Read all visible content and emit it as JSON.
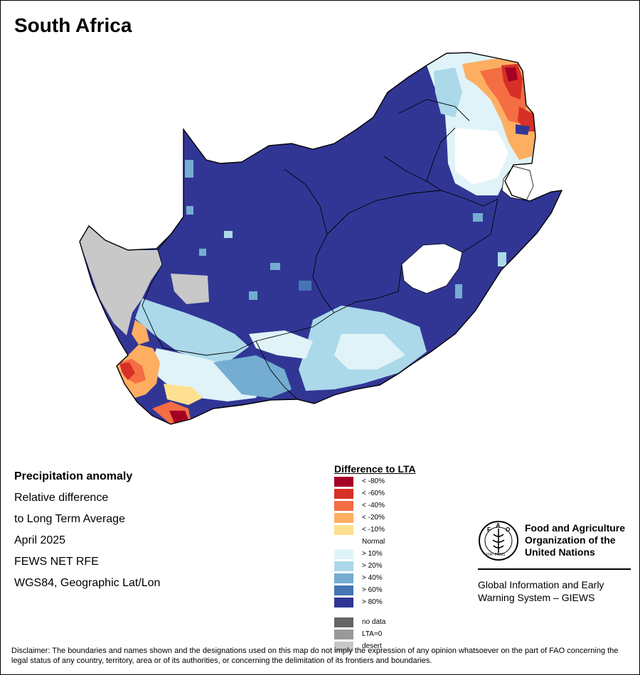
{
  "title": "South Africa",
  "info": {
    "line1": "Precipitation anomaly",
    "line2": "Relative difference",
    "line3": "to Long Term Average",
    "line4": "April 2025",
    "line5": "FEWS NET RFE",
    "line6": "WGS84, Geographic Lat/Lon"
  },
  "legend": {
    "title": "Difference to LTA",
    "items": [
      {
        "label": "< -80%",
        "color": "#a50026"
      },
      {
        "label": "< -60%",
        "color": "#d73027"
      },
      {
        "label": "< -40%",
        "color": "#f46d43"
      },
      {
        "label": "< -20%",
        "color": "#fdae61"
      },
      {
        "label": "< -10%",
        "color": "#fee090"
      },
      {
        "label": "Normal",
        "color": "#ffffff"
      },
      {
        "label": "> 10%",
        "color": "#e0f3f8"
      },
      {
        "label": "> 20%",
        "color": "#abd9e9"
      },
      {
        "label": "> 40%",
        "color": "#74add1"
      },
      {
        "label": "> 60%",
        "color": "#4575b4"
      },
      {
        "label": "> 80%",
        "color": "#313695"
      },
      {
        "label": "no data",
        "color": "#666666"
      },
      {
        "label": "LTA=0",
        "color": "#999999"
      },
      {
        "label": "desert",
        "color": "#c8c8c8"
      }
    ]
  },
  "org": {
    "name_line1": "Food and Agriculture",
    "name_line2": "Organization of the",
    "name_line3": "United Nations",
    "system_line1": "Global Information and Early",
    "system_line2": "Warning System – GIEWS",
    "logo_text": "FAO",
    "logo_motto": "FIAT PANIS"
  },
  "disclaimer": "Disclaimer: The boundaries and names shown and the designations used on this map do not imply the expression of any opinion whatsoever on the part of FAO concerning the legal status of any country, territory, area or of its authorities, or concerning the delimitation of its frontiers and boundaries."
}
